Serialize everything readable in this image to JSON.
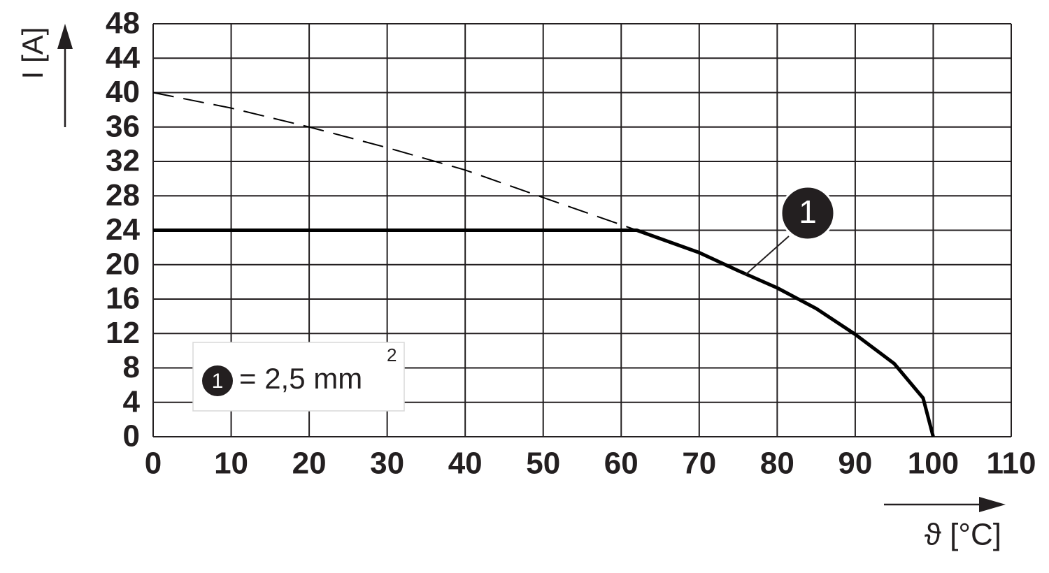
{
  "chart_data": {
    "type": "line",
    "xlabel": "ϑ [°C]",
    "ylabel": "I [A]",
    "xlim": [
      0,
      110
    ],
    "ylim": [
      0,
      48
    ],
    "xticks": [
      0,
      10,
      20,
      30,
      40,
      50,
      60,
      70,
      80,
      90,
      100,
      110
    ],
    "yticks": [
      0,
      4,
      8,
      12,
      16,
      20,
      24,
      28,
      32,
      36,
      40,
      44,
      48
    ],
    "grid": true,
    "series": [
      {
        "style": "dashed",
        "color": "#000000",
        "x": [
          0,
          10,
          20,
          30,
          40,
          50,
          62
        ],
        "values": [
          40,
          38.2,
          36,
          33.6,
          31,
          27.8,
          24
        ]
      },
      {
        "style": "solid",
        "color": "#000000",
        "x": [
          0,
          62,
          70,
          75,
          80,
          85,
          90,
          95,
          98.7,
          100
        ],
        "values": [
          24,
          24,
          21.4,
          19.3,
          17.3,
          14.9,
          11.9,
          8.5,
          4.5,
          0
        ]
      }
    ],
    "callout": "1",
    "legend": {
      "marker": "1",
      "text": "= 2,5 mm",
      "superscript": "2"
    }
  }
}
